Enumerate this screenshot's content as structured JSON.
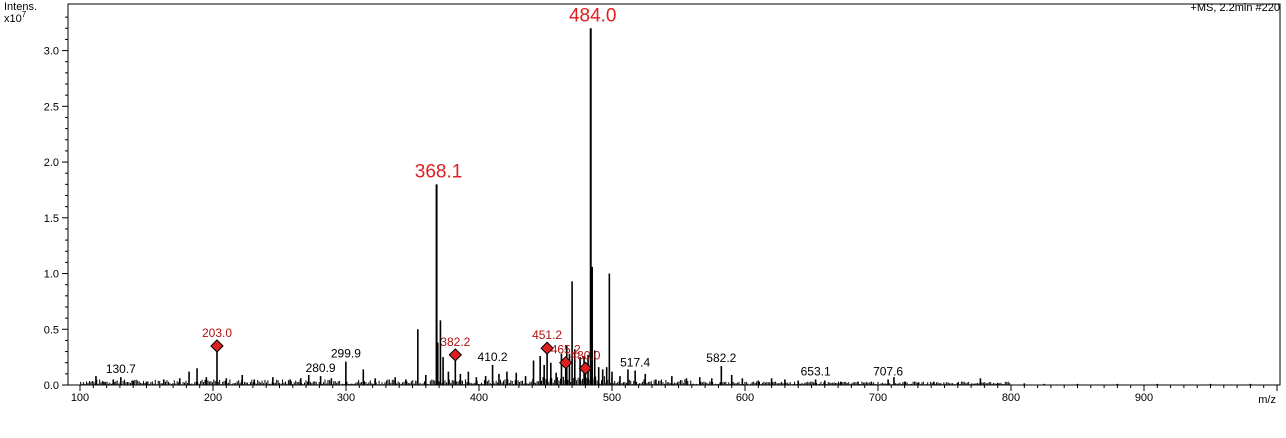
{
  "chart_data": {
    "type": "bar",
    "title": "",
    "corner_label": "+MS, 2.2min #220",
    "ylabel": "Intens.",
    "yscale_label": "x10",
    "yscale_exp": "7",
    "xlabel": "m/z",
    "xlim": [
      100,
      1000
    ],
    "ylim": [
      0,
      3.4
    ],
    "x_ticks": [
      "100",
      "200",
      "300",
      "400",
      "500",
      "600",
      "700",
      "800",
      "900"
    ],
    "y_ticks": [
      "0.0",
      "0.5",
      "1.0",
      "1.5",
      "2.0",
      "2.5",
      "3.0"
    ],
    "grid": false,
    "legend": "none",
    "colors": {
      "spectrum": "#000000",
      "highlight": "#e02020",
      "marker": "#e02020",
      "marker_label": "#b01010"
    },
    "major_peaks": [
      {
        "mz": 484.0,
        "intensity": 3.2,
        "label": "484.0"
      },
      {
        "mz": 368.1,
        "intensity": 1.8,
        "label": "368.1"
      }
    ],
    "marked_peaks": [
      {
        "mz": 203.0,
        "intensity": 0.35,
        "label": "203.0"
      },
      {
        "mz": 382.2,
        "intensity": 0.27,
        "label": "382.2"
      },
      {
        "mz": 451.2,
        "intensity": 0.33,
        "label": "451.2"
      },
      {
        "mz": 465.2,
        "intensity": 0.2,
        "label": "465.2"
      },
      {
        "mz": 480.0,
        "intensity": 0.15,
        "label": "480.0"
      }
    ],
    "labeled_peaks": [
      {
        "mz": 130.7,
        "intensity": 0.07,
        "label": "130.7"
      },
      {
        "mz": 280.9,
        "intensity": 0.08,
        "label": "280.9"
      },
      {
        "mz": 299.9,
        "intensity": 0.21,
        "label": "299.9"
      },
      {
        "mz": 410.2,
        "intensity": 0.18,
        "label": "410.2"
      },
      {
        "mz": 517.4,
        "intensity": 0.13,
        "label": "517.4"
      },
      {
        "mz": 582.2,
        "intensity": 0.17,
        "label": "582.2"
      },
      {
        "mz": 653.1,
        "intensity": 0.05,
        "label": "653.1"
      },
      {
        "mz": 707.6,
        "intensity": 0.05,
        "label": "707.6"
      }
    ],
    "other_peaks": [
      [
        112,
        0.08
      ],
      [
        118,
        0.03
      ],
      [
        125,
        0.05
      ],
      [
        140,
        0.04
      ],
      [
        150,
        0.03
      ],
      [
        163,
        0.05
      ],
      [
        175,
        0.06
      ],
      [
        182,
        0.12
      ],
      [
        188,
        0.15
      ],
      [
        195,
        0.07
      ],
      [
        210,
        0.06
      ],
      [
        222,
        0.09
      ],
      [
        231,
        0.05
      ],
      [
        245,
        0.07
      ],
      [
        258,
        0.05
      ],
      [
        266,
        0.06
      ],
      [
        272,
        0.09
      ],
      [
        289,
        0.06
      ],
      [
        313,
        0.14
      ],
      [
        322,
        0.06
      ],
      [
        337,
        0.07
      ],
      [
        345,
        0.05
      ],
      [
        354,
        0.5
      ],
      [
        360,
        0.09
      ],
      [
        369,
        0.38
      ],
      [
        371,
        0.58
      ],
      [
        373,
        0.25
      ],
      [
        377,
        0.12
      ],
      [
        386,
        0.1
      ],
      [
        392,
        0.12
      ],
      [
        398,
        0.07
      ],
      [
        405,
        0.08
      ],
      [
        415,
        0.1
      ],
      [
        421,
        0.12
      ],
      [
        428,
        0.11
      ],
      [
        435,
        0.08
      ],
      [
        441,
        0.22
      ],
      [
        446,
        0.26
      ],
      [
        449,
        0.18
      ],
      [
        454,
        0.2
      ],
      [
        458,
        0.11
      ],
      [
        462,
        0.28
      ],
      [
        466,
        0.35
      ],
      [
        468,
        0.28
      ],
      [
        470,
        0.93
      ],
      [
        472,
        0.32
      ],
      [
        476,
        0.25
      ],
      [
        479,
        0.26
      ],
      [
        482,
        0.27
      ],
      [
        484.6,
        0.6
      ],
      [
        485.1,
        1.06
      ],
      [
        487,
        0.31
      ],
      [
        490,
        0.16
      ],
      [
        493,
        0.14
      ],
      [
        496,
        0.16
      ],
      [
        498,
        1.0
      ],
      [
        500,
        0.12
      ],
      [
        506,
        0.08
      ],
      [
        512,
        0.14
      ],
      [
        525,
        0.1
      ],
      [
        533,
        0.05
      ],
      [
        545,
        0.08
      ],
      [
        556,
        0.06
      ],
      [
        566,
        0.07
      ],
      [
        575,
        0.06
      ],
      [
        590,
        0.09
      ],
      [
        598,
        0.06
      ],
      [
        610,
        0.04
      ],
      [
        620,
        0.06
      ],
      [
        630,
        0.05
      ],
      [
        640,
        0.04
      ],
      [
        660,
        0.04
      ],
      [
        672,
        0.03
      ],
      [
        685,
        0.03
      ],
      [
        695,
        0.03
      ],
      [
        712,
        0.07
      ],
      [
        720,
        0.03
      ],
      [
        730,
        0.02
      ],
      [
        742,
        0.03
      ],
      [
        760,
        0.02
      ],
      [
        777,
        0.06
      ],
      [
        790,
        0.02
      ],
      [
        810,
        0.015
      ],
      [
        825,
        0.01
      ],
      [
        850,
        0.01
      ],
      [
        880,
        0.01
      ],
      [
        910,
        0.01
      ],
      [
        950,
        0.01
      ],
      [
        980,
        0.01
      ]
    ]
  }
}
